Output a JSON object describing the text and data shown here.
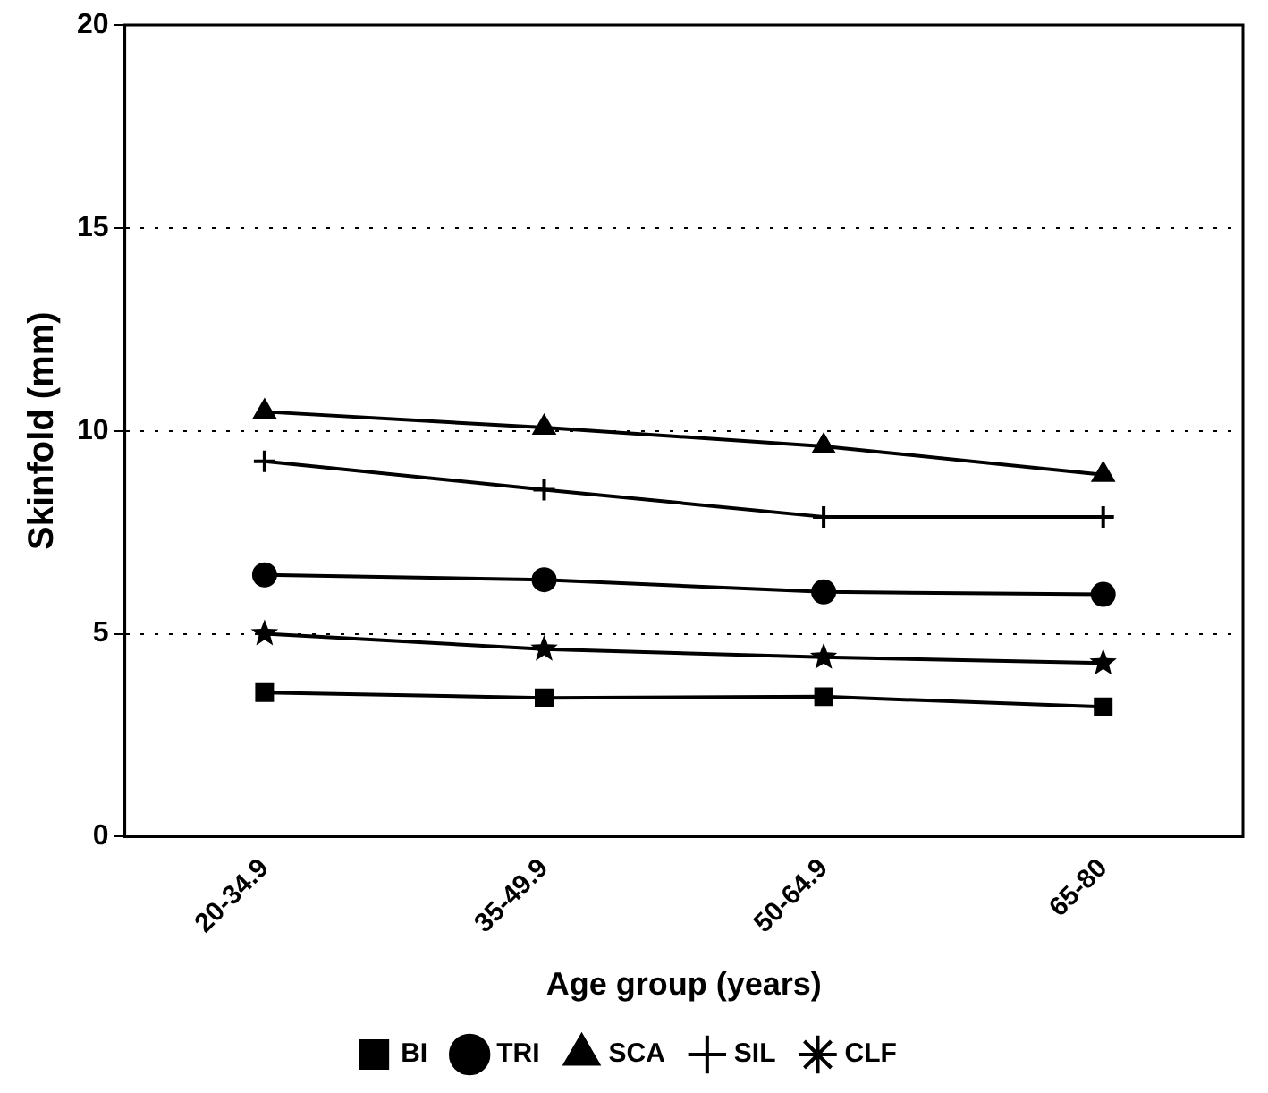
{
  "chart_data": {
    "type": "line",
    "xlabel": "Age group (years)",
    "ylabel": "Skinfold (mm)",
    "categories": [
      "20-34.9",
      "35-49.9",
      "50-64.9",
      "65-80"
    ],
    "ylim": [
      0,
      20
    ],
    "yticks": [
      0,
      5,
      10,
      15,
      20
    ],
    "grid": "y",
    "legend": "bottom",
    "line_style": "solid",
    "series": [
      {
        "name": "BI",
        "color": "#000000",
        "marker": "square",
        "values": [
          3.55,
          3.42,
          3.45,
          3.2
        ]
      },
      {
        "name": "TRI",
        "color": "#000000",
        "marker": "circle",
        "values": [
          6.45,
          6.33,
          6.03,
          5.97
        ]
      },
      {
        "name": "SCA",
        "color": "#000000",
        "marker": "triangle",
        "values": [
          10.47,
          10.08,
          9.62,
          8.92
        ]
      },
      {
        "name": "SIL",
        "color": "#000000",
        "marker": "cross",
        "values": [
          9.25,
          8.55,
          7.88,
          7.88
        ]
      },
      {
        "name": "CLF",
        "color": "#000000",
        "marker": "star",
        "values": [
          5.0,
          4.62,
          4.42,
          4.28
        ]
      }
    ]
  }
}
